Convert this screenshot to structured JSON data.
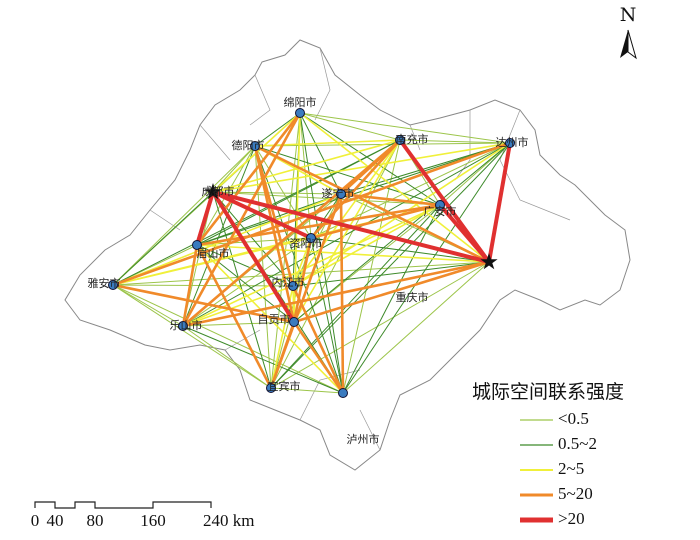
{
  "north": "N",
  "cities": [
    {
      "label": "绵阳市"
    },
    {
      "label": "德阳市"
    },
    {
      "label": "成都市",
      "hub": true
    },
    {
      "label": "南充市"
    },
    {
      "label": "达州市"
    },
    {
      "label": "遂宁市"
    },
    {
      "label": "广安市"
    },
    {
      "label": "资阳市"
    },
    {
      "label": "眉山市"
    },
    {
      "label": "重庆市",
      "hub": true
    },
    {
      "label": "内江市"
    },
    {
      "label": "雅安市"
    },
    {
      "label": "乐山市"
    },
    {
      "label": "自贡市"
    },
    {
      "label": "宜宾市"
    },
    {
      "label": "泸州市"
    }
  ],
  "legend": {
    "title": "城际空间联系强度",
    "items": [
      {
        "label": "<0.5",
        "color": "#9cc54a"
      },
      {
        "label": "0.5~2",
        "color": "#3d8a2a"
      },
      {
        "label": "2~5",
        "color": "#f0f03a"
      },
      {
        "label": "5~20",
        "color": "#f08a2a"
      },
      {
        "label": ">20",
        "color": "#e03030"
      }
    ]
  },
  "scale_bar": {
    "labels": [
      "0",
      "40",
      "80",
      "160",
      "240 km"
    ]
  }
}
